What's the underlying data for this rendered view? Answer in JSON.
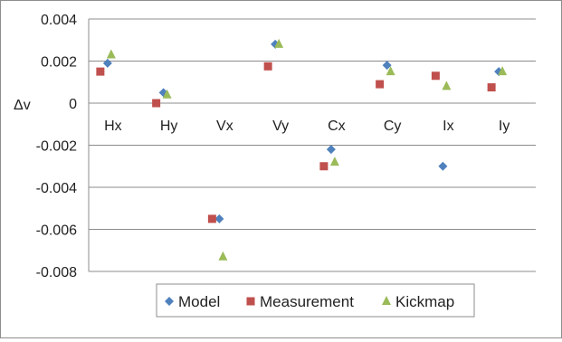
{
  "chart_data": {
    "type": "scatter",
    "categories": [
      "Hx",
      "Hy",
      "Vx",
      "Vy",
      "Cx",
      "Cy",
      "Ix",
      "Iy"
    ],
    "ylabel": "Δv",
    "ylim": [
      -0.008,
      0.004
    ],
    "yticks": [
      "0.004",
      "0.002",
      "0",
      "-0.002",
      "-0.004",
      "-0.006",
      "-0.008"
    ],
    "grid": true,
    "legend_position": "bottom",
    "series": [
      {
        "name": "Model",
        "marker": "diamond",
        "color": "#4f81bd",
        "values": [
          0.0019,
          0.0005,
          -0.0055,
          0.0028,
          -0.0022,
          0.0018,
          -0.003,
          0.0015
        ]
      },
      {
        "name": "Measurement",
        "marker": "square",
        "color": "#c0504d",
        "values": [
          0.0015,
          0.0,
          -0.0055,
          0.00175,
          -0.003,
          0.0009,
          0.0013,
          0.00075
        ]
      },
      {
        "name": "Kickmap",
        "marker": "triangle",
        "color": "#9bbb59",
        "values": [
          0.0023,
          0.0004,
          -0.0073,
          0.0028,
          -0.0028,
          0.0015,
          0.0008,
          0.0015
        ]
      }
    ]
  }
}
